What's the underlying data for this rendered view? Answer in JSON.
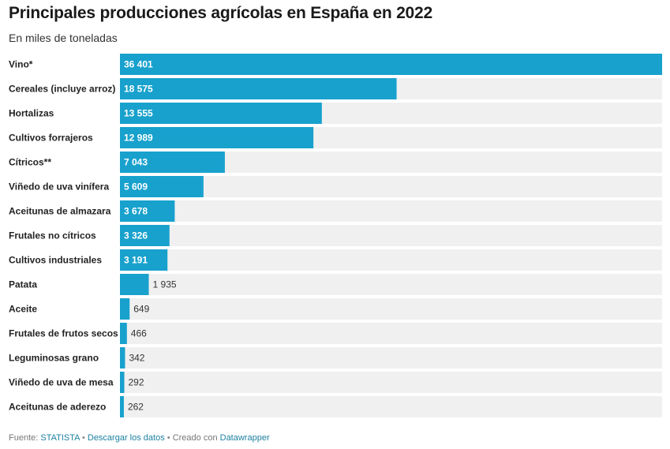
{
  "title": "Principales producciones agrícolas en España en 2022",
  "subtitle": "En miles de toneladas",
  "colors": {
    "bar": "#18a1cd",
    "track": "#f0f0f0"
  },
  "chart_data": {
    "type": "bar",
    "orientation": "horizontal",
    "categories": [
      "Vino*",
      "Cereales (incluye arroz)",
      "Hortalizas",
      "Cultivos forrajeros",
      "Cítricos**",
      "Viñedo de uva vinífera",
      "Aceitunas de almazara",
      "Frutales no cítricos",
      "Cultivos industriales",
      "Patata",
      "Aceite",
      "Frutales de frutos secos",
      "Leguminosas grano",
      "Viñedo de uva de mesa",
      "Aceitunas de aderezo"
    ],
    "values": [
      36401,
      18575,
      13555,
      12989,
      7043,
      5609,
      3678,
      3326,
      3191,
      1935,
      649,
      466,
      342,
      292,
      262
    ],
    "value_labels": [
      "36 401",
      "18 575",
      "13 555",
      "12 989",
      "7 043",
      "5 609",
      "3 678",
      "3 326",
      "3 191",
      "1 935",
      "649",
      "466",
      "342",
      "292",
      "262"
    ],
    "xlim": [
      0,
      36401
    ],
    "legend": "none",
    "grid": false
  },
  "footer": {
    "prefix": "Fuente:",
    "source": "STATISTA",
    "sep1": "•",
    "download": "Descargar los datos",
    "sep2": "•",
    "created": "Creado con",
    "tool": "Datawrapper"
  }
}
